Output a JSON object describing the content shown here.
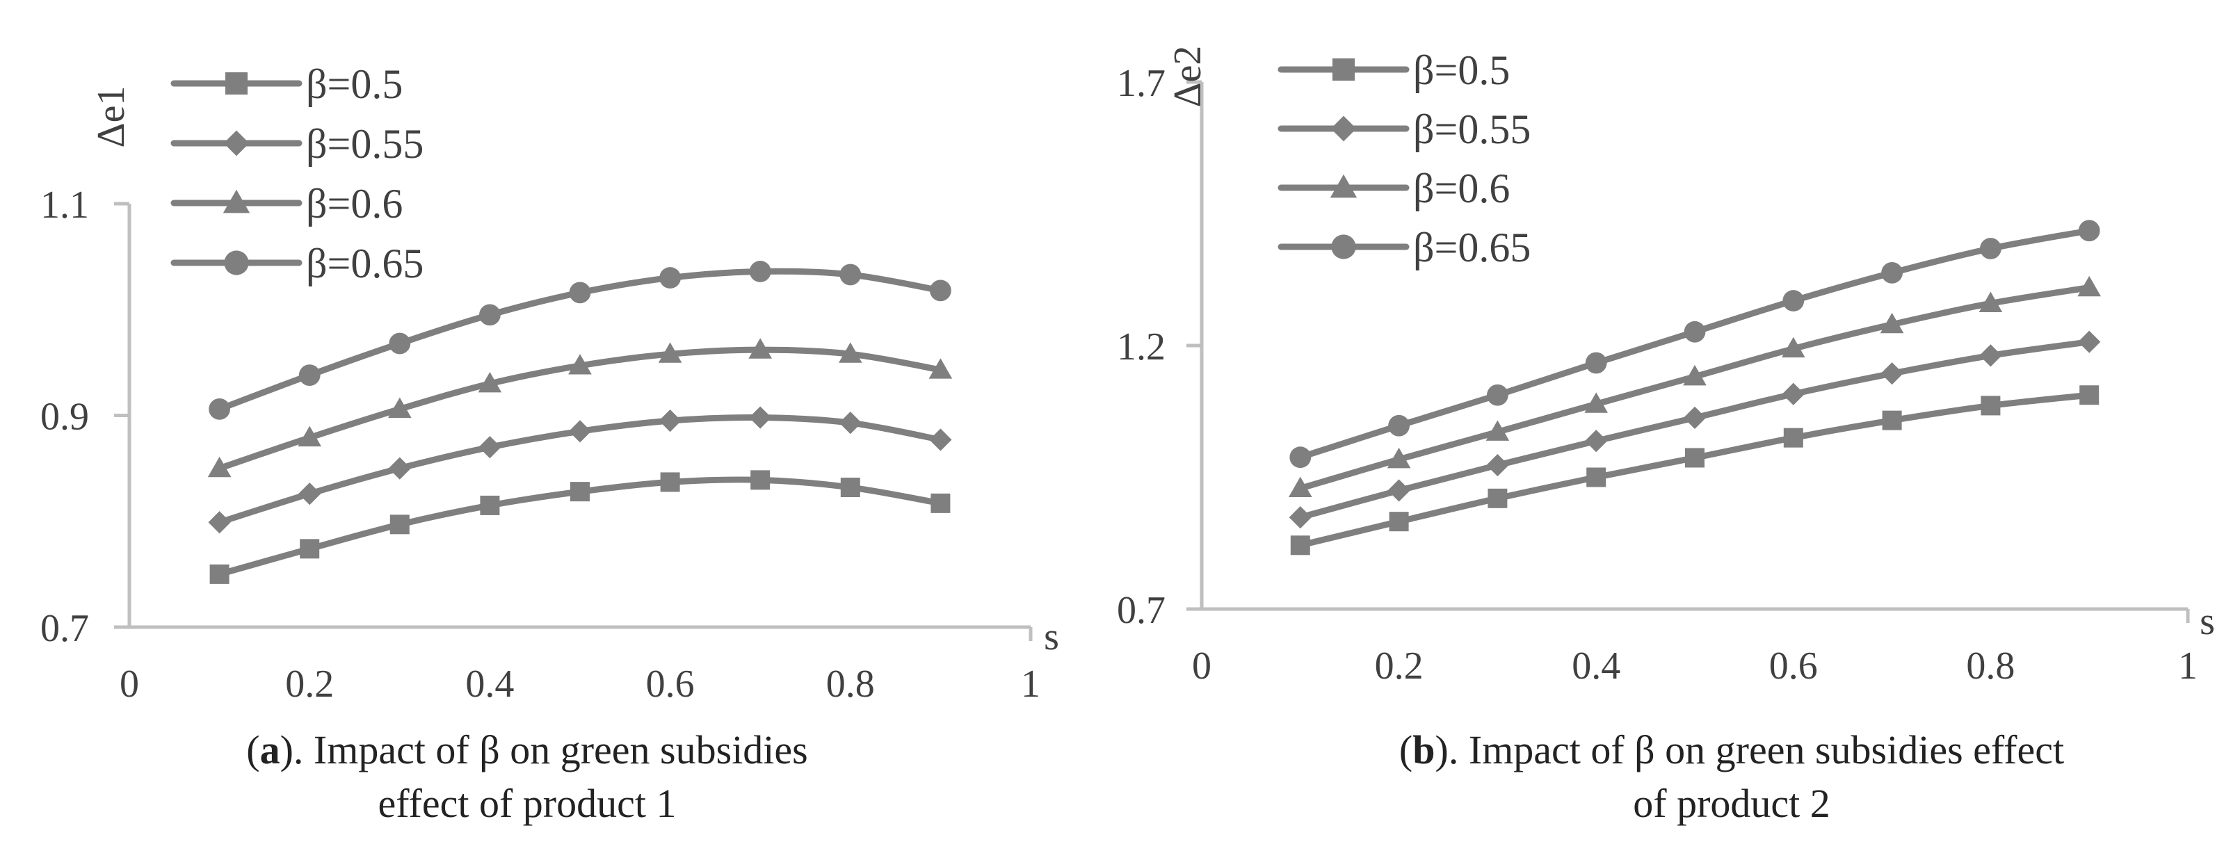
{
  "colors": {
    "series": "#7f7f7f",
    "axis": "#bfbfbf",
    "text": "#404040"
  },
  "chart_data": [
    {
      "type": "line",
      "panel_label": "a",
      "caption_line1": "). Impact of β on green subsidies",
      "caption_line2": "effect of product 1",
      "xlabel": "s",
      "ylabel": "Δe1",
      "xlim": [
        0,
        1
      ],
      "ylim": [
        0.7,
        1.1
      ],
      "xticks": [
        0,
        0.2,
        0.4,
        0.6,
        0.8,
        1
      ],
      "xtick_labels": [
        "0",
        "0.2",
        "0.4",
        "0.6",
        "0.8",
        "1"
      ],
      "yticks": [
        0.7,
        0.9,
        1.1
      ],
      "ytick_labels": [
        "0.7",
        "0.9",
        "1.1"
      ],
      "x": [
        0.1,
        0.2,
        0.3,
        0.4,
        0.5,
        0.6,
        0.7,
        0.8,
        0.9
      ],
      "series": [
        {
          "name": "β=0.5",
          "marker": "square",
          "values": [
            0.75,
            0.774,
            0.797,
            0.815,
            0.828,
            0.837,
            0.839,
            0.832,
            0.817
          ]
        },
        {
          "name": "β=0.55",
          "marker": "diamond",
          "values": [
            0.799,
            0.826,
            0.85,
            0.87,
            0.885,
            0.895,
            0.898,
            0.893,
            0.877
          ]
        },
        {
          "name": "β=0.6",
          "marker": "triangle",
          "values": [
            0.85,
            0.879,
            0.906,
            0.93,
            0.947,
            0.958,
            0.962,
            0.958,
            0.943
          ]
        },
        {
          "name": "β=0.65",
          "marker": "circle",
          "values": [
            0.906,
            0.938,
            0.968,
            0.995,
            1.016,
            1.03,
            1.036,
            1.033,
            1.018
          ]
        }
      ]
    },
    {
      "type": "line",
      "panel_label": "b",
      "caption_line1": "). Impact of β on green subsidies effect",
      "caption_line2": "of product 2",
      "xlabel": "s",
      "ylabel": "Δe2",
      "xlim": [
        0,
        1
      ],
      "ylim": [
        0.7,
        1.7
      ],
      "xticks": [
        0,
        0.2,
        0.4,
        0.6,
        0.8,
        1
      ],
      "xtick_labels": [
        "0",
        "0.2",
        "0.4",
        "0.6",
        "0.8",
        "1"
      ],
      "yticks": [
        0.7,
        1.2,
        1.7
      ],
      "ytick_labels": [
        "0.7",
        "1.2",
        "1.7"
      ],
      "x": [
        0.1,
        0.2,
        0.3,
        0.4,
        0.5,
        0.6,
        0.7,
        0.8,
        0.9
      ],
      "series": [
        {
          "name": "β=0.5",
          "marker": "square",
          "values": [
            0.821,
            0.866,
            0.91,
            0.95,
            0.987,
            1.025,
            1.058,
            1.086,
            1.106
          ]
        },
        {
          "name": "β=0.55",
          "marker": "diamond",
          "values": [
            0.874,
            0.925,
            0.973,
            1.019,
            1.063,
            1.108,
            1.147,
            1.181,
            1.207
          ]
        },
        {
          "name": "β=0.6",
          "marker": "triangle",
          "values": [
            0.929,
            0.984,
            1.036,
            1.089,
            1.141,
            1.194,
            1.24,
            1.28,
            1.31
          ]
        },
        {
          "name": "β=0.65",
          "marker": "circle",
          "values": [
            0.988,
            1.048,
            1.106,
            1.167,
            1.226,
            1.285,
            1.338,
            1.384,
            1.418
          ]
        }
      ]
    }
  ]
}
